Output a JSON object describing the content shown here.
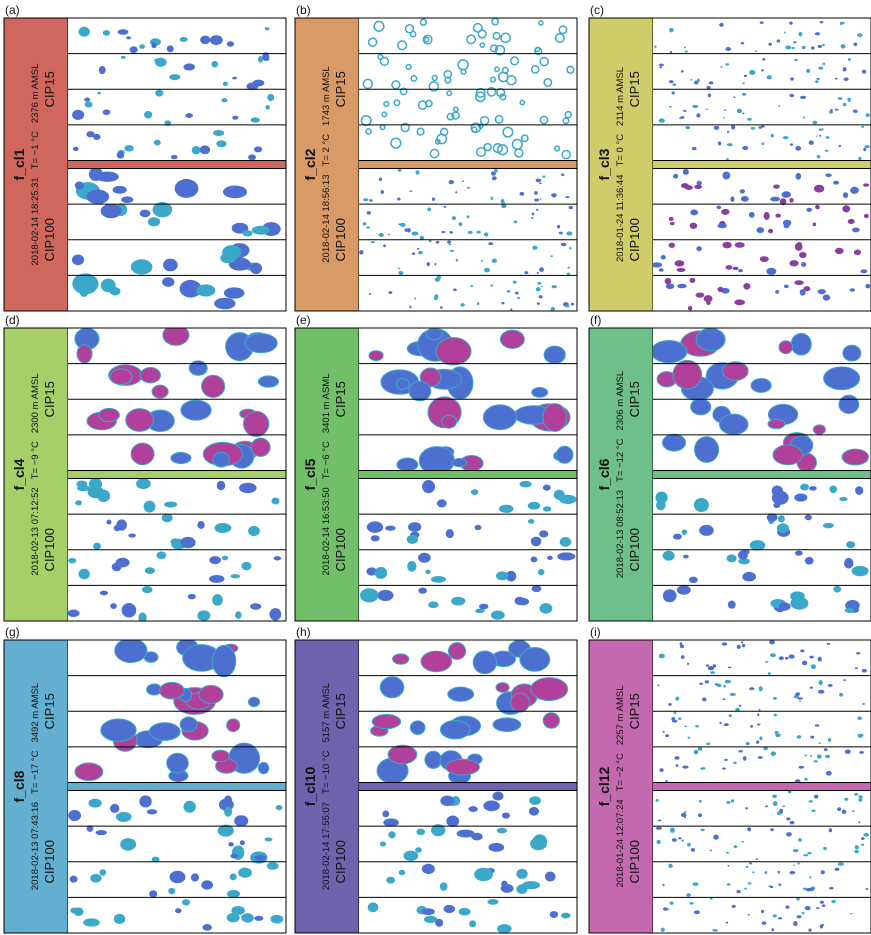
{
  "panels": [
    {
      "label": "(a)",
      "name": "f_cl1",
      "time": "2018-02-14 18:25:31",
      "temp": "T= −1 °C",
      "alt": "2376 m AMSL",
      "top": "CIP15",
      "bottom": "CIP100",
      "color": "#d0675f"
    },
    {
      "label": "(b)",
      "name": "f_cl2",
      "time": "2018-02-14 18:56:13",
      "temp": "T= 2 °C",
      "alt": "1743 m AMSL",
      "top": "CIP15",
      "bottom": "CIP100",
      "color": "#d99a65"
    },
    {
      "label": "(c)",
      "name": "f_cl3",
      "time": "2018-01-24 11:36:44",
      "temp": "T= 0 °C",
      "alt": "2114 m AMSL",
      "top": "CIP15",
      "bottom": "CIP100",
      "color": "#cfcd6a"
    },
    {
      "label": "(d)",
      "name": "f_cl4",
      "time": "2018-02-13 07:12:52",
      "temp": "T= −9 °C",
      "alt": "2300 m AMSL",
      "top": "CIP15",
      "bottom": "CIP100",
      "color": "#a6cf6a"
    },
    {
      "label": "(e)",
      "name": "f_cl5",
      "time": "2018-02-14 16:53:50",
      "temp": "T= −6 °C",
      "alt": "3401 m ASML",
      "top": "CIP15",
      "bottom": "CIP100",
      "color": "#72bf6a"
    },
    {
      "label": "(f)",
      "name": "f_cl6",
      "time": "2018-02-13 08:52:13",
      "temp": "T= −12 °C",
      "alt": "2306 m AMSL",
      "top": "CIP15",
      "bottom": "CIP100",
      "color": "#6fbf8b"
    },
    {
      "label": "(g)",
      "name": "f_cl8",
      "time": "2018-02-13 07:43:16",
      "temp": "T= −17 °C",
      "alt": "3492 m AMSL",
      "top": "CIP15",
      "bottom": "CIP100",
      "color": "#64afd0"
    },
    {
      "label": "(h)",
      "name": "f_cl10",
      "time": "2018-02-14 17:55:07",
      "temp": "T= −10 °C",
      "alt": "5157 m AMSL",
      "top": "CIP15",
      "bottom": "CIP100",
      "color": "#6f63b0"
    },
    {
      "label": "(i)",
      "name": "f_cl12",
      "time": "2018-01-24 12:07:24",
      "temp": "T= −2 °C",
      "alt": "2257 m AMSL",
      "top": "CIP15",
      "bottom": "CIP100",
      "color": "#c469b0"
    }
  ]
}
